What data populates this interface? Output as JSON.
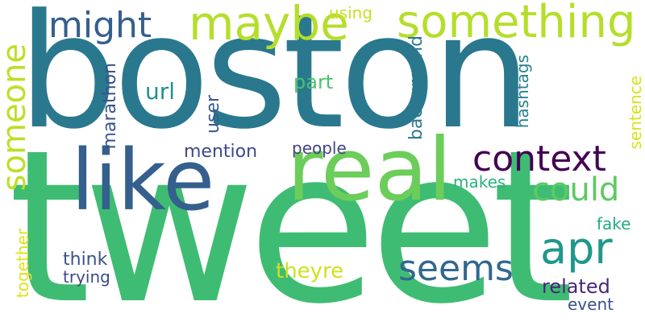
{
  "words": [
    {
      "key": "boston",
      "text": "boston",
      "color": "#2a788e"
    },
    {
      "key": "tweet",
      "text": "tweet",
      "color": "#3fbc73"
    },
    {
      "key": "real",
      "text": "real",
      "color": "#6ccd5a"
    },
    {
      "key": "like",
      "text": "like",
      "color": "#355f8d"
    },
    {
      "key": "maybe",
      "text": "maybe",
      "color": "#b5de2b"
    },
    {
      "key": "something",
      "text": "something",
      "color": "#b5de2b"
    },
    {
      "key": "might",
      "text": "might",
      "color": "#355f8d"
    },
    {
      "key": "context",
      "text": "context",
      "color": "#440154"
    },
    {
      "key": "could",
      "text": "could",
      "color": "#5ec962"
    },
    {
      "key": "apr",
      "text": "apr",
      "color": "#1f988b"
    },
    {
      "key": "seems",
      "text": "seems",
      "color": "#31688e"
    },
    {
      "key": "someone",
      "text": "someone",
      "color": "#bddf26"
    },
    {
      "key": "using",
      "text": "using",
      "color": "#c8e020"
    },
    {
      "key": "url",
      "text": "url",
      "color": "#21918c"
    },
    {
      "key": "part",
      "text": "part",
      "color": "#4ac16d"
    },
    {
      "key": "user",
      "text": "user",
      "color": "#38588c"
    },
    {
      "key": "marathon",
      "text": "marathon",
      "color": "#3b528b"
    },
    {
      "key": "mention",
      "text": "mention",
      "color": "#3e4989"
    },
    {
      "key": "people",
      "text": "people",
      "color": "#414487"
    },
    {
      "key": "background",
      "text": "background",
      "color": "#2a788e"
    },
    {
      "key": "hashtags",
      "text": "hashtags",
      "color": "#26828e"
    },
    {
      "key": "sentence",
      "text": "sentence",
      "color": "#d8e219"
    },
    {
      "key": "makes",
      "text": "makes",
      "color": "#2cb17e"
    },
    {
      "key": "fake",
      "text": "fake",
      "color": "#23a983"
    },
    {
      "key": "think",
      "text": "think",
      "color": "#3b528b"
    },
    {
      "key": "trying",
      "text": "trying",
      "color": "#3e4a89"
    },
    {
      "key": "together",
      "text": "together",
      "color": "#dde318"
    },
    {
      "key": "theyre",
      "text": "theyre",
      "color": "#d0e11c"
    },
    {
      "key": "related",
      "text": "related",
      "color": "#482878"
    },
    {
      "key": "event",
      "text": "event",
      "color": "#3b528b"
    }
  ]
}
